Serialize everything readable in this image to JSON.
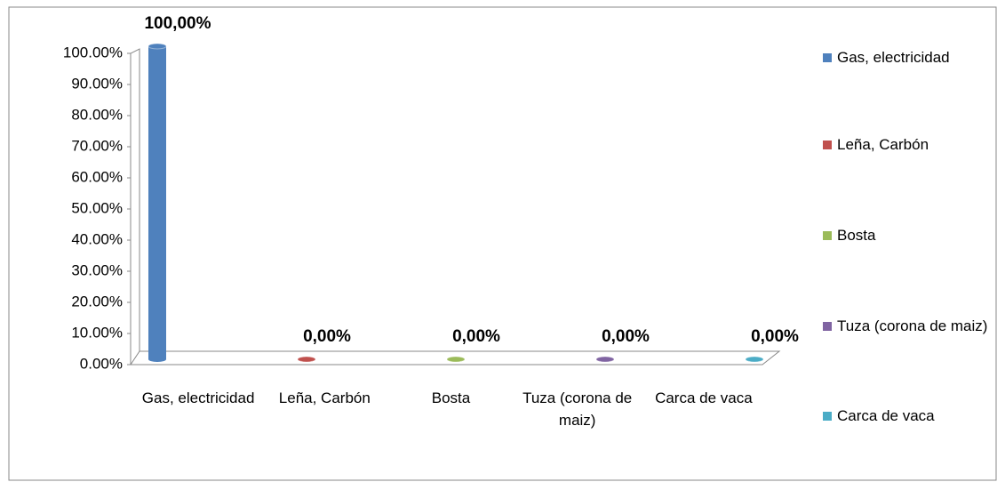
{
  "chart_data": {
    "type": "bar3d",
    "categories": [
      "Gas, electricidad",
      "Leña, Carbón",
      "Bosta",
      "Tuza (corona de maiz)",
      "Carca de vaca"
    ],
    "values": [
      100,
      0,
      0,
      0,
      0
    ],
    "value_labels": [
      "100,00%",
      "0,00%",
      "0,00%",
      "0,00%",
      "0,00%"
    ],
    "colors": [
      "#4f81bd",
      "#c0504d",
      "#9bbb59",
      "#8064a2",
      "#4bacc6"
    ],
    "ylim": [
      0,
      100
    ],
    "yticks": [
      {
        "value": 0,
        "label": "0.00%"
      },
      {
        "value": 10,
        "label": "10.00%"
      },
      {
        "value": 20,
        "label": "20.00%"
      },
      {
        "value": 30,
        "label": "30.00%"
      },
      {
        "value": 40,
        "label": "40.00%"
      },
      {
        "value": 50,
        "label": "50.00%"
      },
      {
        "value": 60,
        "label": "60.00%"
      },
      {
        "value": 70,
        "label": "70.00%"
      },
      {
        "value": 80,
        "label": "80.00%"
      },
      {
        "value": 90,
        "label": "90.00%"
      },
      {
        "value": 100,
        "label": "100.00%"
      }
    ],
    "legend": "right"
  }
}
